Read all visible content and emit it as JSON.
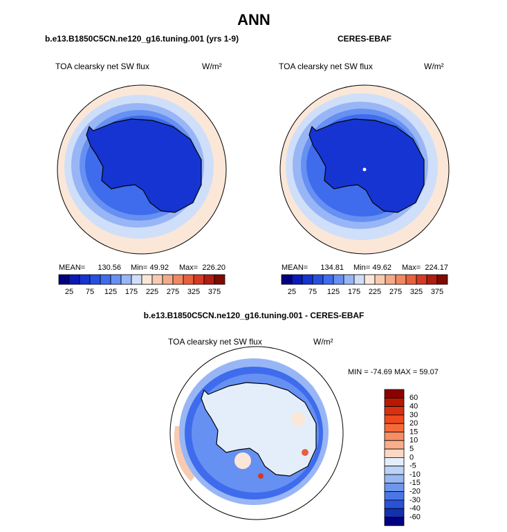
{
  "title": "ANN",
  "panels": [
    {
      "title": "b.e13.B1850C5CN.ne120_g16.tuning.001 (yrs 1-9)",
      "variable": "TOA clearsky net SW flux",
      "units": "W/m²",
      "stats": {
        "mean_label": "MEAN=",
        "mean": "130.56",
        "min_label": "Min=",
        "min": "49.92",
        "max_label": "Max=",
        "max": "226.20"
      }
    },
    {
      "title": "CERES-EBAF",
      "variable": "TOA clearsky net SW flux",
      "units": "W/m²",
      "stats": {
        "mean_label": "MEAN=",
        "mean": "134.81",
        "min_label": "Min=",
        "min": "49.62",
        "max_label": "Max=",
        "max": "224.17"
      }
    }
  ],
  "colorbar": {
    "labels": [
      "25",
      "75",
      "125",
      "175",
      "225",
      "275",
      "325",
      "375"
    ],
    "colors": [
      "#00007f",
      "#0a1ab8",
      "#1634d2",
      "#2650e2",
      "#3e6cec",
      "#6690f2",
      "#98b6f6",
      "#cfdff9",
      "#fbe7d8",
      "#f8cbb0",
      "#f4aa88",
      "#f08862",
      "#e9603e",
      "#d63a22",
      "#b01c10",
      "#7f0a00"
    ]
  },
  "difference": {
    "title": "b.e13.B1850C5CN.ne120_g16.tuning.001 - CERES-EBAF",
    "variable": "TOA clearsky net SW flux",
    "units": "W/m²",
    "stats": "MIN = -74.69 MAX =  59.07",
    "colorbar": {
      "labels": [
        "60",
        "40",
        "30",
        "20",
        "15",
        "10",
        "5",
        "0",
        "-5",
        "-10",
        "-15",
        "-20",
        "-30",
        "-40",
        "-60"
      ],
      "colors": [
        "#8b0000",
        "#b81800",
        "#d83010",
        "#ee4a1e",
        "#f66a3a",
        "#f88c62",
        "#f8ae8c",
        "#fbd8c4",
        "#e4eefb",
        "#bcd2f6",
        "#98b8f2",
        "#6e96ec",
        "#4a76e6",
        "#2a52d8",
        "#1430b0",
        "#000080"
      ]
    }
  }
}
